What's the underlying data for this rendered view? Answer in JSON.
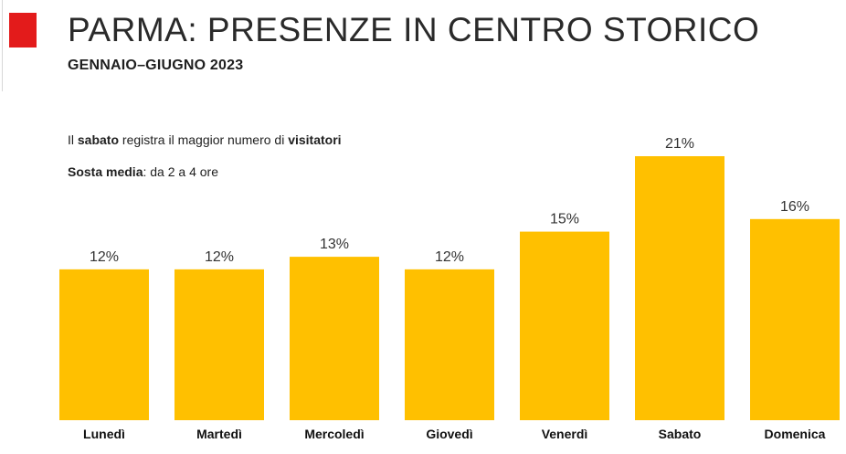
{
  "header": {
    "title": "PARMA: PRESENZE IN CENTRO STORICO",
    "subtitle": "GENNAIO–GIUGNO 2023",
    "accent_color": "#e31b1b"
  },
  "notes": {
    "line1_a": "Il ",
    "line1_b": "sabato",
    "line1_c": " registra il maggior numero di ",
    "line1_d": "visitatori",
    "line2_a": "Sosta media",
    "line2_b": ": da 2 a 4 ore"
  },
  "chart_data": {
    "type": "bar",
    "categories": [
      "Lunedì",
      "Martedì",
      "Mercoledì",
      "Giovedì",
      "Venerdì",
      "Sabato",
      "Domenica"
    ],
    "values": [
      12,
      12,
      13,
      12,
      15,
      21,
      16
    ],
    "value_labels": [
      "12%",
      "12%",
      "13%",
      "12%",
      "15%",
      "21%",
      "16%"
    ],
    "unit": "%",
    "bar_color": "#ffc000",
    "ylim": [
      0,
      21
    ],
    "grid": false,
    "legend": "none"
  }
}
